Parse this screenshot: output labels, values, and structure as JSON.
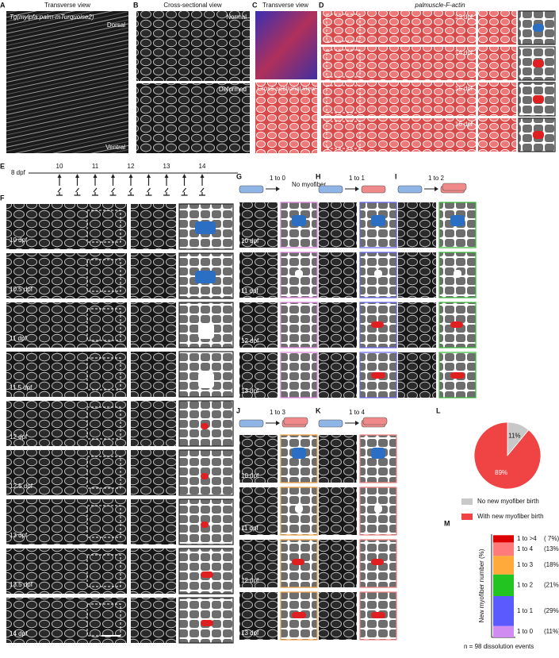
{
  "panels": {
    "A": {
      "letter": "A",
      "title": "Transverse view",
      "subtitle": "Tg(mylpfa:palm-mTurquoise2)",
      "top": "Dorsal",
      "bottom": "Ventral"
    },
    "B": {
      "letter": "B",
      "title": "Cross-sectional view",
      "labels": [
        "Normal",
        "Deformed"
      ]
    },
    "C": {
      "letter": "C",
      "title": "Transverse view",
      "title2": "Cross-sectional view"
    },
    "D": {
      "letter": "D",
      "title": "palmuscle-F-actin",
      "days": [
        "13 dpf",
        "14 dpf",
        "15 dpf",
        "16 dpf"
      ]
    },
    "E": {
      "letter": "E",
      "start": "8 dpf",
      "ticks": [
        "10",
        "11",
        "12",
        "13",
        "14"
      ]
    },
    "F": {
      "letter": "F",
      "days": [
        "10 dpf",
        "10.5 dpf",
        "11 dpf",
        "11.5 dpf",
        "12 dpf",
        "12.5 dpf",
        "13 dpf",
        "13.5 dpf",
        "14 dpf"
      ]
    },
    "G": {
      "letter": "G",
      "ratio": "1 to 0",
      "result": "No myofiber",
      "days": [
        "10 dpf",
        "11 dpf",
        "12 dpf",
        "13 dpf"
      ]
    },
    "H": {
      "letter": "H",
      "ratio": "1 to 1"
    },
    "I": {
      "letter": "I",
      "ratio": "1 to 2"
    },
    "J": {
      "letter": "J",
      "ratio": "1 to 3",
      "days": [
        "10 dpf",
        "11 dpf",
        "12 dpf",
        "13 dpf"
      ]
    },
    "K": {
      "letter": "K",
      "ratio": "1 to 4"
    },
    "L": {
      "letter": "L"
    },
    "M": {
      "letter": "M",
      "note": "n = 98 dissolution events"
    }
  },
  "chart_data": [
    {
      "type": "pie",
      "categories": [
        "No new myofiber birth",
        "With new myofiber birth"
      ],
      "values": [
        11,
        89
      ],
      "value_labels": [
        "11%",
        "89%"
      ],
      "colors": [
        "#c8c8c8",
        "#f04444"
      ]
    },
    {
      "type": "stacked-bar",
      "y_label": "New myofiber number (%)",
      "ylim": [
        0,
        100
      ],
      "series": [
        {
          "name": "1 to 0",
          "color": "#d08cf0",
          "values": [
            11
          ],
          "value_labels": [
            "(11%)"
          ]
        },
        {
          "name": "1 to 1",
          "color": "#5a5aff",
          "values": [
            29
          ],
          "value_labels": [
            "(29%)"
          ]
        },
        {
          "name": "1 to 2",
          "color": "#22c422",
          "values": [
            21
          ],
          "value_labels": [
            "(21%)"
          ]
        },
        {
          "name": "1 to 3",
          "color": "#ffaa3a",
          "values": [
            18
          ],
          "value_labels": [
            "(18%)"
          ]
        },
        {
          "name": "1 to 4",
          "color": "#ff7a7a",
          "values": [
            13
          ],
          "value_labels": [
            "(13%)"
          ]
        },
        {
          "name": "1 to >4",
          "color": "#dd0000",
          "values": [
            7
          ],
          "value_labels": [
            "( 7%)"
          ]
        }
      ]
    }
  ]
}
